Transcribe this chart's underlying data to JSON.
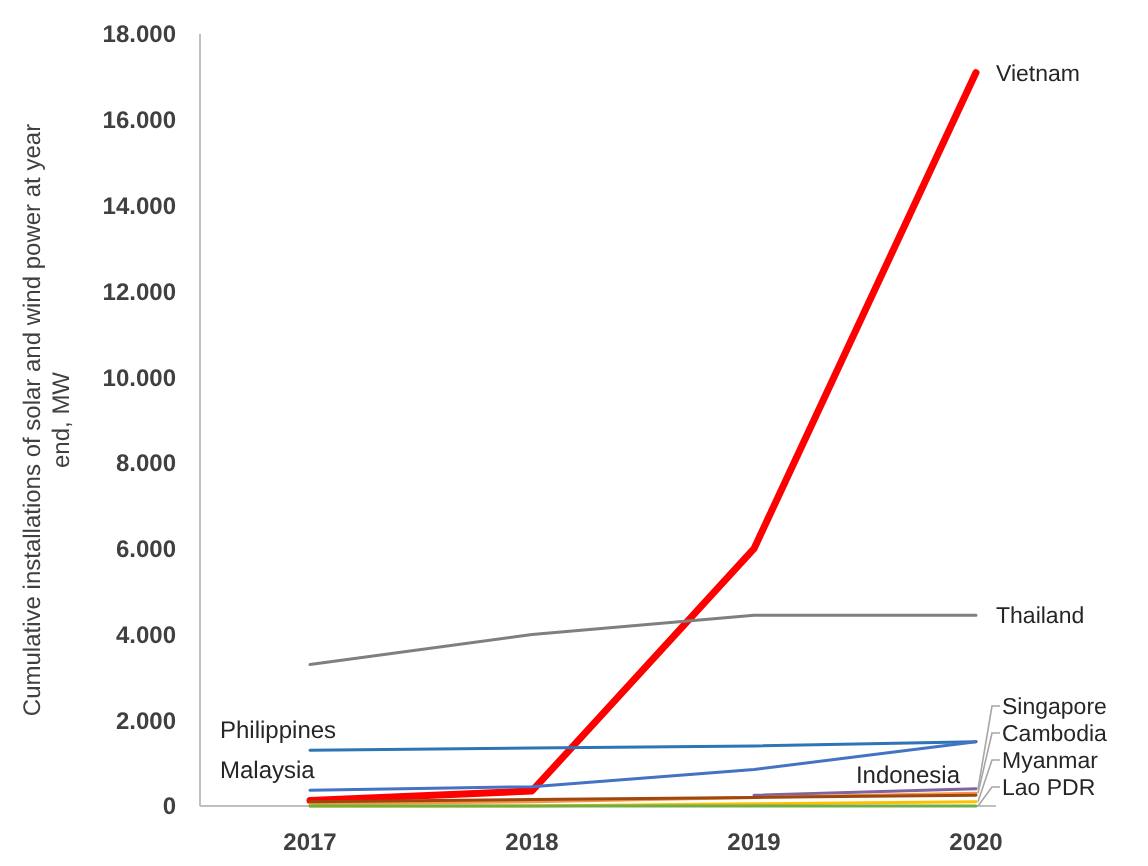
{
  "chart_data": {
    "type": "line",
    "ylabel": "Cumulative installations of solar and wind power at year end, MW",
    "categories": [
      "2017",
      "2018",
      "2019",
      "2020"
    ],
    "ylim": [
      0,
      18000
    ],
    "yticks": [
      0,
      {
        "value": 2000,
        "label": "2.000"
      },
      {
        "value": 4000,
        "label": "4.000"
      },
      {
        "value": 6000,
        "label": "6.000"
      },
      {
        "value": 8000,
        "label": "8.000"
      },
      {
        "value": 10000,
        "label": "10.000"
      },
      {
        "value": 12000,
        "label": "12.000"
      },
      {
        "value": 14000,
        "label": "14.000"
      },
      {
        "value": 16000,
        "label": "16.000"
      },
      {
        "value": 18000,
        "label": "18.000"
      }
    ],
    "grid": false,
    "marker": "none",
    "series": [
      {
        "name": "Vietnam",
        "color": "#ff0000",
        "values": [
          130,
          350,
          6000,
          17100
        ]
      },
      {
        "name": "Thailand",
        "color": "#7f7f7f",
        "values": [
          3300,
          4000,
          4450,
          4450
        ]
      },
      {
        "name": "Philippines",
        "color": "#2e75b6",
        "values": [
          1300,
          1350,
          1400,
          1500
        ]
      },
      {
        "name": "Malaysia",
        "color": "#4472c4",
        "values": [
          370,
          450,
          850,
          1500
        ]
      },
      {
        "name": "Singapore",
        "color": "#8064a2",
        "values": [
          null,
          null,
          250,
          400
        ]
      },
      {
        "name": "Cambodia",
        "color": "#f79646",
        "values": [
          50,
          100,
          200,
          300
        ]
      },
      {
        "name": "Indonesia",
        "color": "#9e480e",
        "values": [
          100,
          150,
          200,
          250
        ]
      },
      {
        "name": "Myanmar",
        "color": "#ffc000",
        "values": [
          0,
          0,
          50,
          100
        ]
      },
      {
        "name": "Lao PDR",
        "color": "#70ad47",
        "values": [
          0,
          0,
          0,
          0
        ]
      }
    ]
  }
}
